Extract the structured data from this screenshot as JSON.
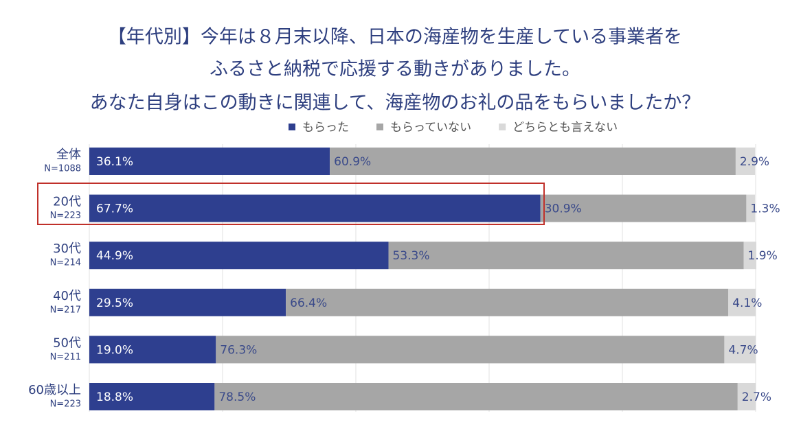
{
  "chart_data": {
    "type": "stacked-bar-horizontal",
    "title": [
      "【年代別】今年は８月末以降、日本の海産物を生産している事業者を",
      "ふるさと納税で応援する動きがありました。",
      "あなた自身はこの動きに関連して、海産物のお礼の品をもらいましたか？"
    ],
    "categories": [
      "全体",
      "20代",
      "30代",
      "40代",
      "50代",
      "60歳以上"
    ],
    "sample_sizes": [
      "N=1088",
      "N=223",
      "N=214",
      "N=217",
      "N=211",
      "N=223"
    ],
    "series": [
      {
        "name": "もらった",
        "color": "#2e3f8f",
        "values": [
          36.1,
          67.7,
          44.9,
          29.5,
          19.0,
          18.8
        ],
        "value_labels": [
          "36.1%",
          "67.7%",
          "44.9%",
          "29.5%",
          "19.0%",
          "18.8%"
        ]
      },
      {
        "name": "もらっていない",
        "color": "#a6a6a6",
        "values": [
          60.9,
          30.9,
          53.3,
          66.4,
          76.3,
          78.5
        ],
        "value_labels": [
          "60.9%",
          "30.9%",
          "53.3%",
          "66.4%",
          "76.3%",
          "78.5%"
        ]
      },
      {
        "name": "どちらとも言えない",
        "color": "#d9d9d9",
        "values": [
          2.9,
          1.3,
          1.9,
          4.1,
          4.7,
          2.7
        ],
        "value_labels": [
          "2.9%",
          "1.3%",
          "1.9%",
          "4.1%",
          "4.7%",
          "2.7%"
        ]
      }
    ],
    "xlim": [
      0,
      100
    ],
    "xticks": [
      0,
      20,
      40,
      60,
      80,
      100
    ],
    "grid": true
  }
}
